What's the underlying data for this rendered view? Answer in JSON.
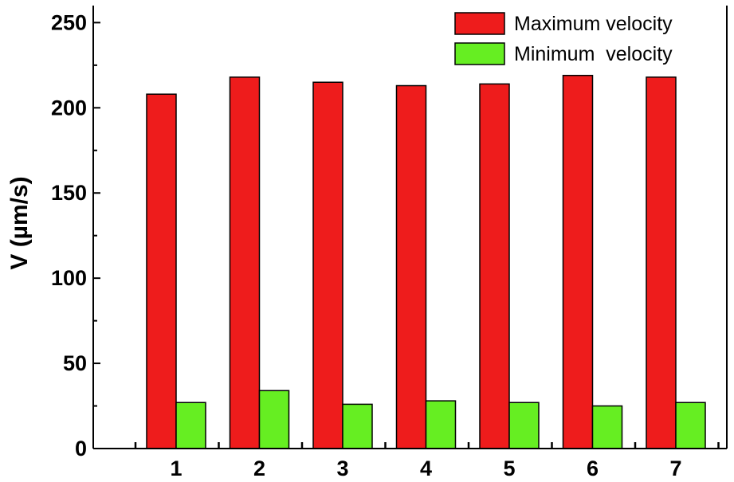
{
  "chart_data": {
    "type": "bar",
    "title": "",
    "xlabel": "",
    "ylabel": "V (µm/s)",
    "categories": [
      "1",
      "2",
      "3",
      "4",
      "5",
      "6",
      "7"
    ],
    "series": [
      {
        "name": "Maximum velocity",
        "color": "#ee1c1c",
        "values": [
          208,
          218,
          215,
          213,
          214,
          219,
          218
        ]
      },
      {
        "name": "Minimum  velocity",
        "color": "#66ee22",
        "values": [
          27,
          34,
          26,
          28,
          27,
          25,
          27
        ]
      }
    ],
    "ylim": [
      0,
      260
    ],
    "yticks": [
      0,
      50,
      100,
      150,
      200,
      250
    ],
    "ytick_labels": [
      "0",
      "50",
      "100",
      "150",
      "200",
      "250"
    ],
    "legend_position": "top-right",
    "grid": false
  }
}
